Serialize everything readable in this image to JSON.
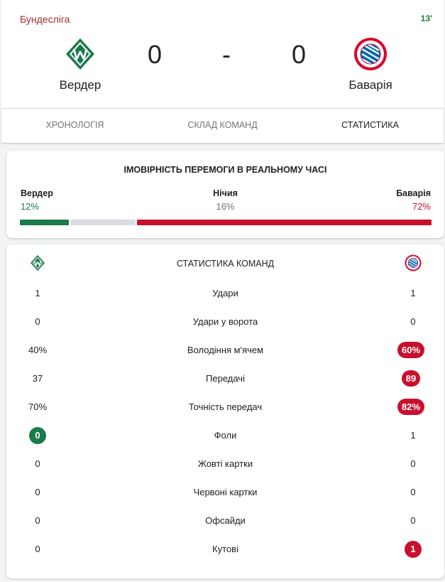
{
  "colors": {
    "home": "#1a7a4a",
    "away": "#c8102e",
    "draw": "#dadce0",
    "league": "#a52a2a",
    "minute": "#188038"
  },
  "match": {
    "league": "Бундесліга",
    "minute": "13'",
    "home": {
      "name": "Вердер",
      "score": "0",
      "logo": "werder-logo"
    },
    "separator": "-",
    "away": {
      "name": "Баварія",
      "score": "0",
      "logo": "bayern-logo"
    }
  },
  "tabs": [
    {
      "label": "Хронологія",
      "active": false
    },
    {
      "label": "Склад команд",
      "active": false
    },
    {
      "label": "Статистика",
      "active": true
    }
  ],
  "win_probability": {
    "title": "ІМОВІРНІСТЬ ПЕРЕМОГИ В РЕАЛЬНОМУ ЧАСІ",
    "home": {
      "label": "Вердер",
      "value": "12%",
      "fraction": 0.12
    },
    "draw": {
      "label": "Нічия",
      "value": "16%",
      "fraction": 0.16
    },
    "away": {
      "label": "Баварія",
      "value": "72%",
      "fraction": 0.72
    }
  },
  "team_stats": {
    "title": "Статистика команд",
    "rows": [
      {
        "label": "Удари",
        "home": "1",
        "away": "1",
        "highlight": "none"
      },
      {
        "label": "Удари у ворота",
        "home": "0",
        "away": "0",
        "highlight": "none"
      },
      {
        "label": "Володіння м'ячем",
        "home": "40%",
        "away": "60%",
        "highlight": "away"
      },
      {
        "label": "Передачі",
        "home": "37",
        "away": "89",
        "highlight": "away"
      },
      {
        "label": "Точність передач",
        "home": "70%",
        "away": "82%",
        "highlight": "away"
      },
      {
        "label": "Фоли",
        "home": "0",
        "away": "1",
        "highlight": "home"
      },
      {
        "label": "Жовті картки",
        "home": "0",
        "away": "0",
        "highlight": "none"
      },
      {
        "label": "Червоні картки",
        "home": "0",
        "away": "0",
        "highlight": "none"
      },
      {
        "label": "Офсайди",
        "home": "0",
        "away": "0",
        "highlight": "none"
      },
      {
        "label": "Кутові",
        "home": "0",
        "away": "1",
        "highlight": "away"
      }
    ]
  }
}
